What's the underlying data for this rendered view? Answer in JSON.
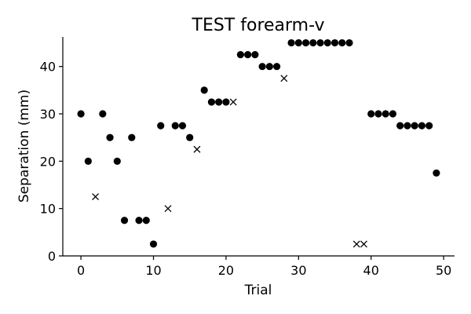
{
  "chart_data": {
    "type": "scatter",
    "title": "TEST forearm-v",
    "xlabel": "Trial",
    "ylabel": "Separation (mm)",
    "xlim": [
      -2.5,
      51.5
    ],
    "ylim": [
      0,
      46.25
    ],
    "xticks": [
      0,
      10,
      20,
      30,
      40,
      50
    ],
    "yticks": [
      0,
      10,
      20,
      30,
      40
    ],
    "xtick_labels": [
      "0",
      "10",
      "20",
      "30",
      "40",
      "50"
    ],
    "ytick_labels": [
      "0",
      "10",
      "20",
      "30",
      "40"
    ],
    "grid": false,
    "series": [
      {
        "marker": "circle",
        "color": "#000000",
        "points": [
          [
            0,
            30
          ],
          [
            1,
            20
          ],
          [
            3,
            30
          ],
          [
            4,
            25
          ],
          [
            5,
            20
          ],
          [
            6,
            7.5
          ],
          [
            7,
            25
          ],
          [
            8,
            7.5
          ],
          [
            9,
            7.5
          ],
          [
            10,
            2.5
          ],
          [
            11,
            27.5
          ],
          [
            13,
            27.5
          ],
          [
            14,
            27.5
          ],
          [
            15,
            25
          ],
          [
            17,
            35
          ],
          [
            18,
            32.5
          ],
          [
            19,
            32.5
          ],
          [
            20,
            32.5
          ],
          [
            22,
            42.5
          ],
          [
            23,
            42.5
          ],
          [
            24,
            42.5
          ],
          [
            25,
            40
          ],
          [
            26,
            40
          ],
          [
            27,
            40
          ],
          [
            29,
            45
          ],
          [
            30,
            45
          ],
          [
            31,
            45
          ],
          [
            32,
            45
          ],
          [
            33,
            45
          ],
          [
            34,
            45
          ],
          [
            35,
            45
          ],
          [
            36,
            45
          ],
          [
            37,
            45
          ],
          [
            40,
            30
          ],
          [
            41,
            30
          ],
          [
            42,
            30
          ],
          [
            43,
            30
          ],
          [
            44,
            27.5
          ],
          [
            45,
            27.5
          ],
          [
            46,
            27.5
          ],
          [
            47,
            27.5
          ],
          [
            48,
            27.5
          ],
          [
            49,
            17.5
          ]
        ]
      },
      {
        "marker": "x",
        "color": "#000000",
        "points": [
          [
            2,
            12.5
          ],
          [
            12,
            10
          ],
          [
            16,
            22.5
          ],
          [
            21,
            32.5
          ],
          [
            28,
            37.5
          ],
          [
            38,
            2.5
          ],
          [
            39,
            2.5
          ]
        ]
      }
    ]
  }
}
